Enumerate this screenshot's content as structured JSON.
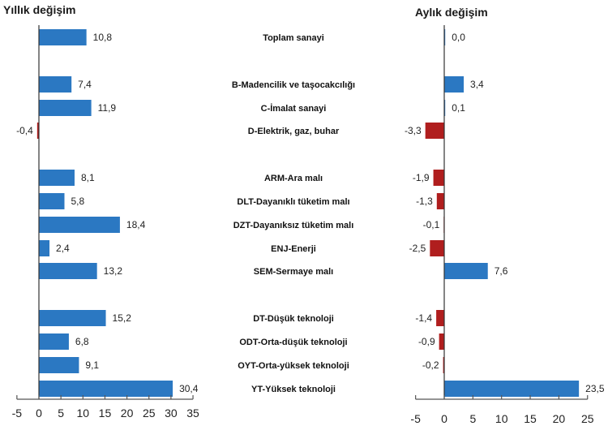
{
  "chart_data": [
    {
      "type": "bar",
      "orientation": "horizontal",
      "title": "Yıllık değişim",
      "xlabel": "",
      "ylabel": "",
      "xlim": [
        -5,
        35
      ],
      "xticks": [
        "-5",
        "0",
        "5",
        "10",
        "15",
        "20",
        "25",
        "30",
        "35"
      ],
      "xtick_values": [
        -5,
        0,
        5,
        10,
        15,
        20,
        25,
        30,
        35
      ],
      "grid": false,
      "positive_color": "#2b78c2",
      "negative_color": "#b01e1e",
      "values": [
        10.8,
        7.4,
        11.9,
        -0.4,
        8.1,
        5.8,
        18.4,
        2.4,
        13.2,
        15.2,
        6.8,
        9.1,
        30.4
      ],
      "value_labels": [
        "10,8",
        "7,4",
        "11,9",
        "-0,4",
        "8,1",
        "5,8",
        "18,4",
        "2,4",
        "13,2",
        "15,2",
        "6,8",
        "9,1",
        "30,4"
      ]
    },
    {
      "type": "bar",
      "orientation": "horizontal",
      "title": "Aylık değişim",
      "xlabel": "",
      "ylabel": "",
      "xlim": [
        -5,
        25
      ],
      "xticks": [
        "-5",
        "0",
        "5",
        "10",
        "15",
        "20",
        "25"
      ],
      "xtick_values": [
        -5,
        0,
        5,
        10,
        15,
        20,
        25
      ],
      "grid": false,
      "positive_color": "#2b78c2",
      "negative_color": "#b01e1e",
      "values": [
        0.0,
        3.4,
        0.1,
        -3.3,
        -1.9,
        -1.3,
        -0.1,
        -2.5,
        7.6,
        -1.4,
        -0.9,
        -0.2,
        23.5
      ],
      "value_labels": [
        "0,0",
        "3,4",
        "0,1",
        "-3,3",
        "-1,9",
        "-1,3",
        "-0,1",
        "-2,5",
        "7,6",
        "-1,4",
        "-0,9",
        "-0,2",
        "23,5"
      ]
    }
  ],
  "categories": [
    "Toplam sanayi",
    "B-Madencilik ve taşocakcılığı",
    "C-İmalat sanayi",
    "D-Elektrik, gaz, buhar",
    "ARM-Ara malı",
    "DLT-Dayanıklı tüketim malı",
    "DZT-Dayanıksız tüketim malı",
    "ENJ-Enerji",
    "SEM-Sermaye malı",
    "DT-Düşük teknoloji",
    "ODT-Orta-düşük teknoloji",
    "OYT-Orta-yüksek teknoloji",
    "YT-Yüksek teknoloji"
  ],
  "category_groups": [
    [
      0
    ],
    [
      1,
      2,
      3
    ],
    [
      4,
      5,
      6,
      7,
      8
    ],
    [
      9,
      10,
      11,
      12
    ]
  ]
}
